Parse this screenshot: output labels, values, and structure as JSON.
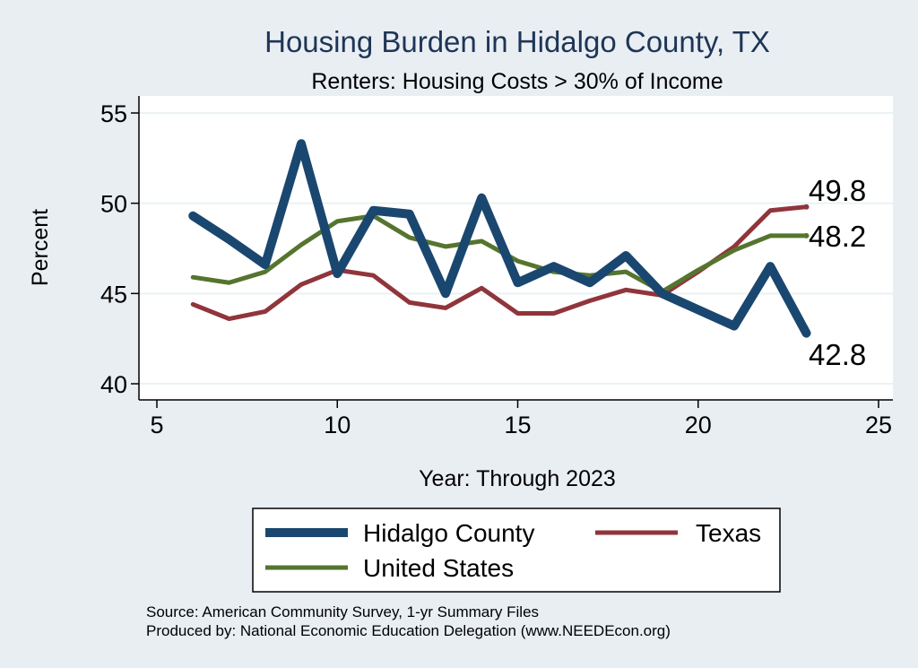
{
  "chart_data": {
    "type": "line",
    "title": "Housing Burden in Hidalgo County, TX",
    "subtitle": "Renters: Housing Costs > 30% of Income",
    "xlabel": "Year: Through 2023",
    "ylabel": "Percent",
    "xlim": [
      5,
      25
    ],
    "ylim": [
      40,
      55
    ],
    "xticks": [
      5,
      10,
      15,
      20,
      25
    ],
    "yticks": [
      40,
      45,
      50,
      55
    ],
    "grid": true,
    "legend_placement": "bottom",
    "series": [
      {
        "name": "Hidalgo County",
        "color": "#1a476f",
        "x": [
          6,
          7,
          8,
          9,
          10,
          11,
          12,
          13,
          14,
          15,
          16,
          17,
          18,
          19,
          20,
          21,
          22,
          23
        ],
        "values": [
          49.3,
          48.0,
          46.6,
          53.3,
          46.1,
          49.6,
          49.4,
          45.0,
          50.3,
          45.6,
          46.5,
          45.6,
          47.1,
          45.0,
          44.1,
          43.2,
          46.5,
          42.8
        ],
        "end_label": "42.8"
      },
      {
        "name": "Texas",
        "color": "#90353b",
        "x": [
          6,
          7,
          8,
          9,
          10,
          11,
          12,
          13,
          14,
          15,
          16,
          17,
          18,
          19,
          20,
          21,
          22,
          23
        ],
        "values": [
          44.4,
          43.6,
          44.0,
          45.5,
          46.3,
          46.0,
          44.5,
          44.2,
          45.3,
          43.9,
          43.9,
          44.6,
          45.2,
          44.9,
          46.2,
          47.6,
          49.6,
          49.8
        ],
        "end_label": "49.8"
      },
      {
        "name": "United States",
        "color": "#55752f",
        "x": [
          6,
          7,
          8,
          9,
          10,
          11,
          12,
          13,
          14,
          15,
          16,
          17,
          18,
          19,
          20,
          21,
          22,
          23
        ],
        "values": [
          45.9,
          45.6,
          46.2,
          47.7,
          49.0,
          49.3,
          48.1,
          47.6,
          47.9,
          46.8,
          46.2,
          46.0,
          46.2,
          45.1,
          46.3,
          47.4,
          48.2,
          48.2
        ],
        "end_label": "48.2"
      }
    ],
    "notes": [
      "Source: American Community Survey, 1-yr Summary Files",
      "Produced by: National Economic Education Delegation (www.NEEDEcon.org)"
    ]
  }
}
